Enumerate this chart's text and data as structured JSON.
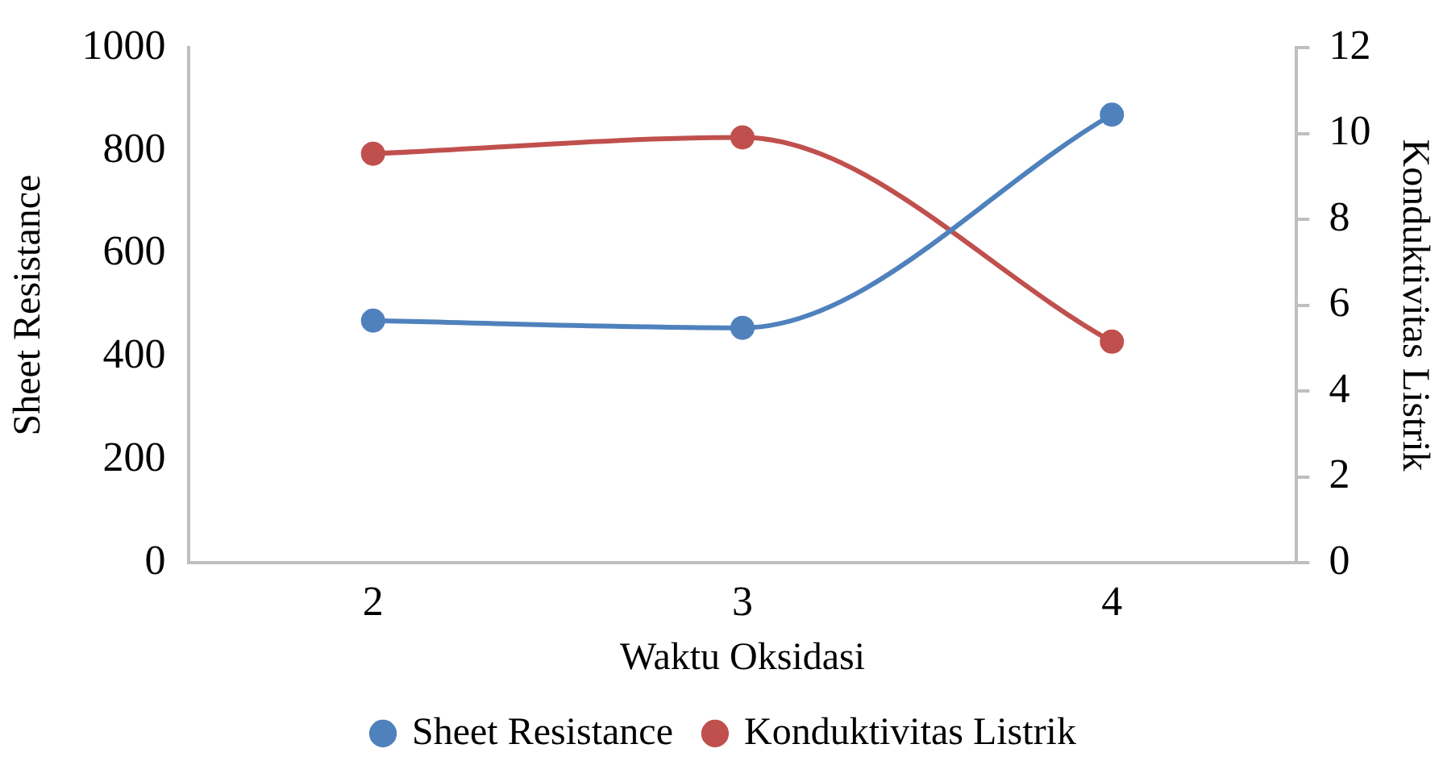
{
  "chart_data": {
    "type": "line",
    "categories": [
      "2",
      "3",
      "4"
    ],
    "xlabel": "Waktu Oksidasi",
    "ylabel": "Sheet Resistance",
    "y2label": "Konduktivitas Listrik",
    "series": [
      {
        "name": "Sheet Resistance",
        "color": "#4f81bd",
        "values": [
          470,
          456,
          870
        ]
      },
      {
        "name": "Konduktivitas Listrik",
        "color": "#c0504d",
        "values": [
          9.53,
          9.91,
          5.15
        ],
        "axis": "y2"
      }
    ],
    "ylim": [
      0,
      1000
    ],
    "yticks": [
      0,
      200,
      400,
      600,
      800,
      1000
    ],
    "y2lim": [
      0,
      12
    ],
    "y2ticks": [
      0,
      2,
      4,
      6,
      8,
      10,
      12
    ],
    "grid": false,
    "legend": "bottom",
    "marker": "circle"
  }
}
